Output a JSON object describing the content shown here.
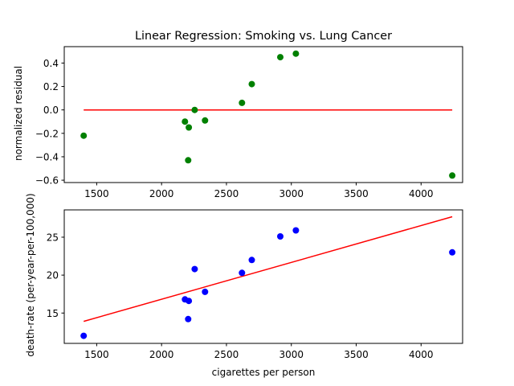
{
  "chart_data": [
    {
      "type": "scatter",
      "title": "Linear Regression: Smoking vs. Lung Cancer",
      "xlabel": "",
      "ylabel": "normalized residual",
      "xlim": [
        1250,
        4320
      ],
      "ylim": [
        -0.62,
        0.54
      ],
      "xticks": [
        1500,
        2000,
        2500,
        3000,
        3500,
        4000
      ],
      "xtick_labels": [
        "1500",
        "2000",
        "2500",
        "3000",
        "3500",
        "4000"
      ],
      "yticks": [
        -0.6,
        -0.4,
        -0.2,
        0.0,
        0.2,
        0.4
      ],
      "ytick_labels": [
        "−0.6",
        "−0.4",
        "−0.2",
        "0.0",
        "0.2",
        "0.4"
      ],
      "grid": false,
      "series": [
        {
          "kind": "points",
          "color": "#008000",
          "points": [
            {
              "x": 1400,
              "y": -0.22
            },
            {
              "x": 2180,
              "y": -0.1
            },
            {
              "x": 2205,
              "y": -0.43
            },
            {
              "x": 2210,
              "y": -0.15
            },
            {
              "x": 2255,
              "y": 0.0
            },
            {
              "x": 2335,
              "y": -0.09
            },
            {
              "x": 2620,
              "y": 0.06
            },
            {
              "x": 2695,
              "y": 0.22
            },
            {
              "x": 2915,
              "y": 0.45
            },
            {
              "x": 3035,
              "y": 0.48
            },
            {
              "x": 4240,
              "y": -0.56
            }
          ]
        },
        {
          "kind": "line",
          "color": "#ff0000",
          "points": [
            {
              "x": 1400,
              "y": 0.0
            },
            {
              "x": 4240,
              "y": 0.0
            }
          ]
        }
      ]
    },
    {
      "type": "scatter",
      "title": "",
      "xlabel": "cigarettes per person",
      "ylabel": "death-rate (per-year-per-100,000)",
      "xlim": [
        1250,
        4320
      ],
      "ylim": [
        11.0,
        28.6
      ],
      "xticks": [
        1500,
        2000,
        2500,
        3000,
        3500,
        4000
      ],
      "xtick_labels": [
        "1500",
        "2000",
        "2500",
        "3000",
        "3500",
        "4000"
      ],
      "yticks": [
        15,
        20,
        25
      ],
      "ytick_labels": [
        "15",
        "20",
        "25"
      ],
      "grid": false,
      "series": [
        {
          "kind": "points",
          "color": "#0000ff",
          "points": [
            {
              "x": 1400,
              "y": 12.0
            },
            {
              "x": 2180,
              "y": 16.8
            },
            {
              "x": 2205,
              "y": 14.2
            },
            {
              "x": 2210,
              "y": 16.6
            },
            {
              "x": 2255,
              "y": 20.8
            },
            {
              "x": 2335,
              "y": 17.8
            },
            {
              "x": 2620,
              "y": 20.3
            },
            {
              "x": 2695,
              "y": 22.0
            },
            {
              "x": 2915,
              "y": 25.1
            },
            {
              "x": 3035,
              "y": 25.9
            },
            {
              "x": 4240,
              "y": 23.0
            }
          ]
        },
        {
          "kind": "line",
          "color": "#ff0000",
          "points": [
            {
              "x": 1400,
              "y": 13.9
            },
            {
              "x": 4240,
              "y": 27.7
            }
          ]
        }
      ]
    }
  ]
}
